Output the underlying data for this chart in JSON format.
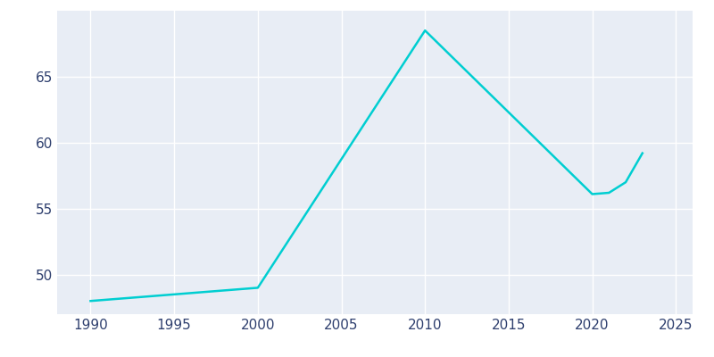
{
  "years": [
    1990,
    2000,
    2010,
    2020,
    2021,
    2022,
    2023
  ],
  "population": [
    48,
    49,
    68.5,
    56.1,
    56.2,
    57.0,
    59.2
  ],
  "line_color": "#00CED1",
  "bg_color": "#e8edf5",
  "fig_bg_color": "#ffffff",
  "grid_color": "#ffffff",
  "tick_color": "#2e3f6e",
  "xlim": [
    1988,
    2026
  ],
  "ylim": [
    47,
    70
  ],
  "yticks": [
    50,
    55,
    60,
    65
  ],
  "xticks": [
    1990,
    1995,
    2000,
    2005,
    2010,
    2015,
    2020,
    2025
  ],
  "linewidth": 1.8
}
